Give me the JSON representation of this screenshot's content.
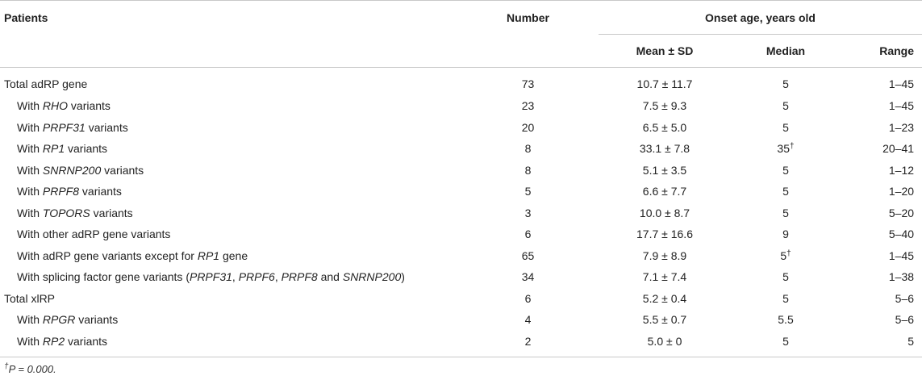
{
  "header": {
    "patients": "Patients",
    "number": "Number",
    "onset": "Onset age, years old",
    "mean_sd": "Mean ± SD",
    "median": "Median",
    "range": "Range"
  },
  "rows": [
    {
      "label_pre": "Total adRP gene",
      "gene": "",
      "label_post": "",
      "number": "73",
      "mean_sd": "10.7 ± 11.7",
      "median": "5",
      "median_sup": "",
      "range": "1–45",
      "indent": false
    },
    {
      "label_pre": "With ",
      "gene": "RHO",
      "label_post": " variants",
      "number": "23",
      "mean_sd": "7.5 ± 9.3",
      "median": "5",
      "median_sup": "",
      "range": "1–45",
      "indent": true
    },
    {
      "label_pre": "With ",
      "gene": "PRPF31",
      "label_post": " variants",
      "number": "20",
      "mean_sd": "6.5 ± 5.0",
      "median": "5",
      "median_sup": "",
      "range": "1–23",
      "indent": true
    },
    {
      "label_pre": "With ",
      "gene": "RP1",
      "label_post": " variants",
      "number": "8",
      "mean_sd": "33.1 ± 7.8",
      "median": "35",
      "median_sup": "†",
      "range": "20–41",
      "indent": true
    },
    {
      "label_pre": "With ",
      "gene": "SNRNP200",
      "label_post": " variants",
      "number": "8",
      "mean_sd": "5.1 ± 3.5",
      "median": "5",
      "median_sup": "",
      "range": "1–12",
      "indent": true
    },
    {
      "label_pre": "With ",
      "gene": "PRPF8",
      "label_post": " variants",
      "number": "5",
      "mean_sd": "6.6 ± 7.7",
      "median": "5",
      "median_sup": "",
      "range": "1–20",
      "indent": true
    },
    {
      "label_pre": "With ",
      "gene": "TOPORS",
      "label_post": " variants",
      "number": "3",
      "mean_sd": "10.0 ± 8.7",
      "median": "5",
      "median_sup": "",
      "range": "5–20",
      "indent": true
    },
    {
      "label_pre": "With other adRP gene variants",
      "gene": "",
      "label_post": "",
      "number": "6",
      "mean_sd": "17.7 ± 16.6",
      "median": "9",
      "median_sup": "",
      "range": "5–40",
      "indent": true
    },
    {
      "label_pre": "With adRP gene variants except for ",
      "gene": "RP1",
      "label_post": " gene",
      "number": "65",
      "mean_sd": "7.9 ± 8.9",
      "median": "5",
      "median_sup": "†",
      "range": "1–45",
      "indent": true
    },
    {
      "label_pre": "With splicing factor gene variants (",
      "genes_list": [
        "PRPF31",
        ", ",
        "PRPF6",
        ", ",
        "PRPF8",
        " and ",
        "SNRNP200"
      ],
      "label_post": ")",
      "number": "34",
      "mean_sd": "7.1 ± 7.4",
      "median": "5",
      "median_sup": "",
      "range": "1–38",
      "indent": true
    },
    {
      "label_pre": "Total xlRP",
      "gene": "",
      "label_post": "",
      "number": "6",
      "mean_sd": "5.2 ± 0.4",
      "median": "5",
      "median_sup": "",
      "range": "5–6",
      "indent": false
    },
    {
      "label_pre": "With ",
      "gene": "RPGR",
      "label_post": " variants",
      "number": "4",
      "mean_sd": "5.5 ± 0.7",
      "median": "5.5",
      "median_sup": "",
      "range": "5–6",
      "indent": true
    },
    {
      "label_pre": "With ",
      "gene": "RP2",
      "label_post": " variants",
      "number": "2",
      "mean_sd": "5.0 ± 0",
      "median": "5",
      "median_sup": "",
      "range": "5",
      "indent": true
    }
  ],
  "footnote": {
    "symbol": "†",
    "text": "P = 0.000."
  }
}
